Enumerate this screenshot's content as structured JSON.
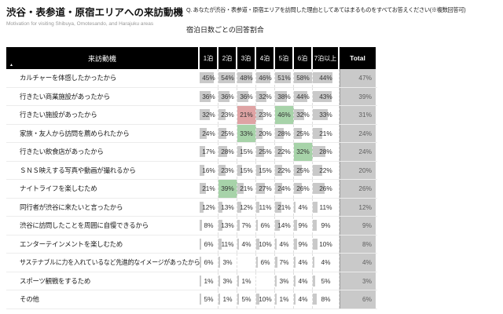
{
  "title": {
    "main": "渋谷・表参道・原宿エリアへの来訪動機",
    "sub": "Motivation for visiting Shibuya, Omotesando, and Harajuku areas"
  },
  "question": "Q. あなたが渋谷・表参道・原宿エリアを訪問した理由としてあてはまるものをすべてお答えください(※複数回答可)",
  "subheading": "宿泊日数ごとの回答割合",
  "sort_icon": "▲",
  "colors": {
    "bar": "#c9c9c9",
    "total_bg": "#c9c9c9",
    "header_bg": "#000000",
    "green_highlight": "#a7d3a9",
    "red_highlight": "#dfa3a4"
  },
  "chart_data": {
    "type": "table",
    "title": "宿泊日数ごとの回答割合",
    "row_header": "来訪動機",
    "columns": [
      "1泊",
      "2泊",
      "3泊",
      "4泊",
      "5泊",
      "6泊",
      "7泊以上"
    ],
    "total_label": "Total",
    "unit": "%",
    "rows": [
      {
        "label": "カルチャーを体感したかったから",
        "values": [
          45,
          54,
          48,
          46,
          51,
          58,
          44
        ],
        "total": 47,
        "highlights": {}
      },
      {
        "label": "行きたい商業施設があったから",
        "values": [
          36,
          36,
          36,
          32,
          38,
          44,
          43
        ],
        "total": 39,
        "highlights": {}
      },
      {
        "label": "行きたい施設があったから",
        "values": [
          32,
          23,
          21,
          23,
          46,
          32,
          33
        ],
        "total": 31,
        "highlights": {
          "2": "red",
          "4": "green"
        }
      },
      {
        "label": "家族・友人から訪問を薦められたから",
        "values": [
          24,
          25,
          33,
          20,
          28,
          25,
          21
        ],
        "total": 24,
        "highlights": {
          "2": "green"
        }
      },
      {
        "label": "行きたい飲食店があったから",
        "values": [
          17,
          28,
          15,
          25,
          22,
          32,
          28
        ],
        "total": 24,
        "highlights": {
          "5": "green"
        }
      },
      {
        "label": "ＳＮＳ映えする写真や動画が撮れるから",
        "values": [
          16,
          23,
          15,
          15,
          22,
          25,
          22
        ],
        "total": 20,
        "highlights": {}
      },
      {
        "label": "ナイトライフを楽しむため",
        "values": [
          21,
          39,
          21,
          27,
          24,
          26,
          26
        ],
        "total": 26,
        "highlights": {
          "1": "green"
        }
      },
      {
        "label": "同行者が渋谷に来たいと言ったから",
        "values": [
          12,
          13,
          12,
          11,
          21,
          4,
          11
        ],
        "total": 12,
        "highlights": {}
      },
      {
        "label": "渋谷に訪問したことを周囲に自慢できるから",
        "values": [
          8,
          13,
          7,
          6,
          14,
          9,
          9
        ],
        "total": 9,
        "highlights": {}
      },
      {
        "label": "エンターテインメントを楽しむため",
        "values": [
          6,
          11,
          4,
          10,
          4,
          9,
          10
        ],
        "total": 8,
        "highlights": {}
      },
      {
        "label": "サステナブルに力を入れているなど先進的なイメージがあったから",
        "values": [
          6,
          3,
          null,
          6,
          7,
          4,
          4
        ],
        "total": 4,
        "highlights": {}
      },
      {
        "label": "スポーツ観戦をするため",
        "values": [
          1,
          3,
          1,
          null,
          3,
          4,
          5
        ],
        "total": 3,
        "highlights": {}
      },
      {
        "label": "その他",
        "values": [
          5,
          1,
          5,
          10,
          1,
          4,
          8
        ],
        "total": 6,
        "highlights": {}
      }
    ]
  }
}
